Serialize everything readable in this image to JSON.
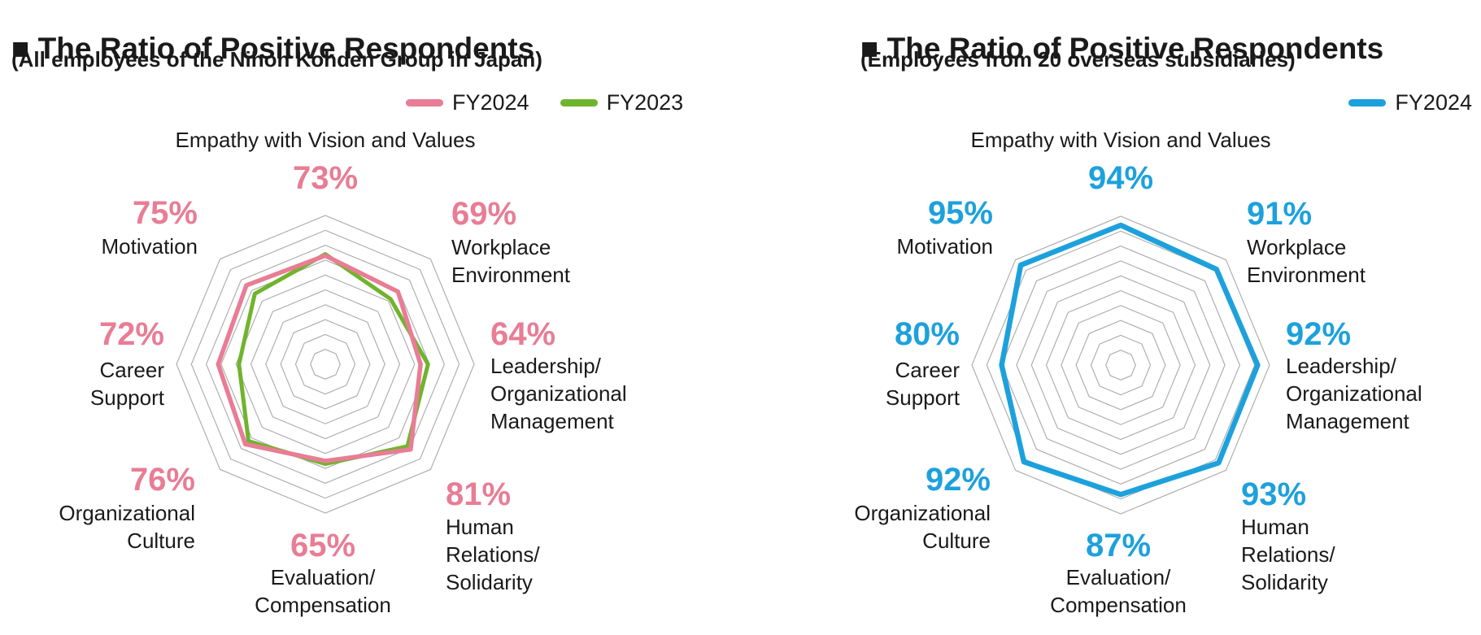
{
  "colors": {
    "fy2024_japan": "#e87d95",
    "fy2023_japan": "#70b42d",
    "fy2024_overseas": "#1da1dc",
    "text": "#1a1a1a",
    "grid": "#a9a9a9",
    "title_bullet": "#000000"
  },
  "charts": [
    {
      "title": "■ The Ratio of Positive Respondents",
      "subtitle": "(All employees of the Nihon Kohden Group in Japan)",
      "value_color": "#e87d95",
      "legend": [
        {
          "label": "FY2024",
          "color": "#e87d95"
        },
        {
          "label": "FY2023",
          "color": "#70b42d"
        }
      ],
      "axes": [
        {
          "key": "empathy",
          "label": "Empathy with Vision and Values",
          "value_label": "73%"
        },
        {
          "key": "workplace",
          "label": "Workplace\nEnvironment",
          "value_label": "69%"
        },
        {
          "key": "leadership",
          "label": "Leadership/\nOrganizational\nManagement",
          "value_label": "64%"
        },
        {
          "key": "human-relations",
          "label": "Human\nRelations/\nSolidarity",
          "value_label": "81%"
        },
        {
          "key": "evaluation",
          "label": "Evaluation/\nCompensation",
          "value_label": "65%"
        },
        {
          "key": "organizational-culture",
          "label": "Organizational\nCulture",
          "value_label": "76%"
        },
        {
          "key": "career-support",
          "label": "Career\nSupport",
          "value_label": "72%"
        },
        {
          "key": "motivation",
          "label": "Motivation",
          "value_label": "75%"
        }
      ]
    },
    {
      "title": "■ The Ratio of Positive Respondents",
      "subtitle": "(Employees from 20 overseas subsidiaries)",
      "value_color": "#1da1dc",
      "legend": [
        {
          "label": "FY2024",
          "color": "#1da1dc"
        }
      ],
      "axes": [
        {
          "key": "empathy",
          "label": "Empathy with Vision and Values",
          "value_label": "94%"
        },
        {
          "key": "workplace",
          "label": "Workplace\nEnvironment",
          "value_label": "91%"
        },
        {
          "key": "leadership",
          "label": "Leadership/\nOrganizational\nManagement",
          "value_label": "92%"
        },
        {
          "key": "human-relations",
          "label": "Human\nRelations/\nSolidarity",
          "value_label": "93%"
        },
        {
          "key": "evaluation",
          "label": "Evaluation/\nCompensation",
          "value_label": "87%"
        },
        {
          "key": "organizational-culture",
          "label": "Organizational\nCulture",
          "value_label": "92%"
        },
        {
          "key": "career-support",
          "label": "Career\nSupport",
          "value_label": "80%"
        },
        {
          "key": "motivation",
          "label": "Motivation",
          "value_label": "95%"
        }
      ]
    }
  ],
  "chart_data": [
    {
      "type": "radar",
      "title": "The Ratio of Positive Respondents",
      "subtitle": "All employees of the Nihon Kohden Group in Japan",
      "categories": [
        "Empathy with Vision and Values",
        "Workplace Environment",
        "Leadership/Organizational Management",
        "Human Relations/Solidarity",
        "Evaluation/Compensation",
        "Organizational Culture",
        "Career Support",
        "Motivation"
      ],
      "series": [
        {
          "name": "FY2024",
          "color": "#e87d95",
          "values": [
            73,
            69,
            64,
            81,
            65,
            76,
            72,
            75
          ],
          "labels_shown": true
        },
        {
          "name": "FY2023",
          "color": "#70b42d",
          "values": [
            74,
            62,
            69,
            78,
            67,
            73,
            58,
            67
          ],
          "labels_shown": false,
          "estimated": true
        }
      ],
      "scale_max": 100,
      "rings": 10,
      "grid_shape": "octagon",
      "grid": true,
      "legend_position": "top-right"
    },
    {
      "type": "radar",
      "title": "The Ratio of Positive Respondents",
      "subtitle": "Employees from 20 overseas subsidiaries",
      "categories": [
        "Empathy with Vision and Values",
        "Workplace Environment",
        "Leadership/Organizational Management",
        "Human Relations/Solidarity",
        "Evaluation/Compensation",
        "Organizational Culture",
        "Career Support",
        "Motivation"
      ],
      "series": [
        {
          "name": "FY2024",
          "color": "#1da1dc",
          "values": [
            94,
            91,
            92,
            93,
            87,
            92,
            80,
            95
          ],
          "labels_shown": true
        }
      ],
      "scale_max": 100,
      "rings": 10,
      "grid_shape": "octagon",
      "grid": true,
      "legend_position": "top-right"
    }
  ]
}
